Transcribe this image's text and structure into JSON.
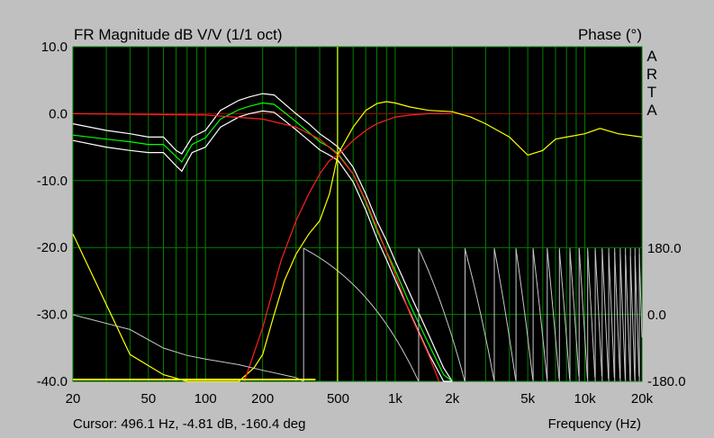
{
  "title": "FR Magnitude dB V/V (1/1 oct)",
  "right_title": "Phase (°)",
  "brand_letters": [
    "A",
    "R",
    "T",
    "A"
  ],
  "cursor_readout": "Cursor: 496.1 Hz, -4.81 dB, -160.4 deg",
  "xlabel": "Frequency (Hz)",
  "colors": {
    "background": "#c0c0c0",
    "plot_bg": "#000000",
    "grid": "#008000",
    "zero_line": "#a00000",
    "cursor": "#ffff00",
    "white_trace": "#ffffff",
    "green_trace": "#00ff00",
    "yellow_trace": "#ffff00",
    "red_trace": "#ff2020",
    "phase_trace": "#c8c8c8"
  },
  "chart_data": {
    "type": "line",
    "x_scale": "log",
    "xlim": [
      20,
      20000
    ],
    "ylim": [
      -40,
      10
    ],
    "phase_lim": [
      -180,
      180
    ],
    "x_ticks": [
      20,
      50,
      100,
      200,
      500,
      1000,
      2000,
      5000,
      10000,
      20000
    ],
    "x_tick_labels": [
      "20",
      "50",
      "100",
      "200",
      "500",
      "1k",
      "2k",
      "5k",
      "10k",
      "20k"
    ],
    "y_ticks": [
      10,
      0,
      -10,
      -20,
      -30,
      -40
    ],
    "y_tick_labels": [
      "10.0",
      "0.0",
      "-10.0",
      "-20.0",
      "-30.0",
      "-40.0"
    ],
    "phase_ticks": [
      180,
      0,
      -180
    ],
    "phase_tick_labels": [
      "180.0",
      "0.0",
      "-180.0"
    ],
    "grid": true,
    "cursor": {
      "x": 496.1,
      "y": -4.81,
      "phase": -160.4
    },
    "series": [
      {
        "color": "white",
        "x": [
          20,
          30,
          40,
          50,
          60,
          70,
          75,
          85,
          100,
          120,
          150,
          170,
          200,
          230,
          260,
          300,
          350,
          400,
          450,
          500,
          600,
          700,
          800,
          900,
          1000,
          1200,
          1500,
          1800,
          2000
        ],
        "y": [
          -1.5,
          -2.5,
          -3.0,
          -3.5,
          -3.5,
          -5.5,
          -6.0,
          -3.5,
          -2.5,
          0.5,
          2.0,
          2.5,
          3.0,
          2.8,
          1.5,
          0.0,
          -1.5,
          -3.0,
          -4.0,
          -5.0,
          -8.0,
          -12.0,
          -16.0,
          -19.0,
          -22.0,
          -27.0,
          -33.0,
          -38.0,
          -40.0
        ]
      },
      {
        "color": "green",
        "x": [
          20,
          30,
          40,
          50,
          60,
          70,
          75,
          85,
          100,
          120,
          150,
          170,
          200,
          230,
          260,
          300,
          350,
          400,
          450,
          500,
          600,
          700,
          800,
          900,
          1000,
          1200,
          1500,
          1800,
          2000
        ],
        "y": [
          -3.2,
          -3.8,
          -4.2,
          -4.6,
          -4.6,
          -6.4,
          -7.2,
          -4.6,
          -3.6,
          -0.8,
          0.6,
          1.1,
          1.6,
          1.4,
          0.2,
          -1.2,
          -2.8,
          -4.2,
          -5.0,
          -6.0,
          -9.0,
          -13.2,
          -17.4,
          -20.6,
          -23.4,
          -28.6,
          -34.4,
          -39.0,
          -40.0
        ]
      },
      {
        "color": "white",
        "x": [
          20,
          30,
          40,
          50,
          60,
          70,
          75,
          85,
          100,
          120,
          150,
          170,
          200,
          230,
          260,
          300,
          350,
          400,
          450,
          500,
          600,
          700,
          800,
          900,
          1000,
          1200,
          1500,
          1800,
          2000
        ],
        "y": [
          -4.0,
          -5.0,
          -5.5,
          -5.8,
          -5.8,
          -7.8,
          -8.6,
          -5.8,
          -5.0,
          -2.0,
          -0.5,
          0.0,
          0.4,
          0.2,
          -1.0,
          -2.4,
          -4.0,
          -5.4,
          -6.2,
          -7.0,
          -10.2,
          -14.4,
          -18.6,
          -21.8,
          -24.8,
          -29.8,
          -35.8,
          -40.0,
          -40.0
        ]
      },
      {
        "color": "yellow",
        "x": [
          20,
          40,
          60,
          80,
          100,
          120,
          150,
          180,
          200,
          230,
          260,
          300,
          350,
          400,
          450,
          500,
          600,
          700,
          800,
          900,
          1000,
          1200,
          1500,
          2000,
          2500,
          3000,
          4000,
          5000,
          6000,
          7000,
          8000,
          10000,
          12000,
          15000,
          20000
        ],
        "y": [
          -18.0,
          -36.0,
          -39.0,
          -40.0,
          -40.0,
          -40.0,
          -40.0,
          -38.0,
          -36.0,
          -30.0,
          -25.0,
          -21.0,
          -18.0,
          -16.0,
          -12.0,
          -6.0,
          -2.0,
          0.5,
          1.5,
          1.8,
          1.6,
          1.0,
          0.5,
          0.3,
          -0.5,
          -1.5,
          -3.5,
          -6.2,
          -5.5,
          -3.8,
          -3.5,
          -3.0,
          -2.2,
          -3.0,
          -3.5
        ]
      },
      {
        "color": "red",
        "x": [
          160,
          200,
          250,
          300,
          350,
          400,
          450,
          500,
          600,
          700,
          800,
          1000,
          1200,
          1500,
          2000
        ],
        "y": [
          -40.0,
          -32.0,
          -22.0,
          -16.0,
          -12.0,
          -9.0,
          -7.0,
          -6.2,
          -4.0,
          -2.5,
          -1.5,
          -0.5,
          -0.2,
          0.0,
          0.0
        ]
      },
      {
        "color": "red",
        "x": [
          20,
          100,
          200,
          300,
          400,
          500,
          600,
          700,
          800,
          1000,
          1200,
          1500,
          1700
        ],
        "y": [
          0.0,
          -0.2,
          -0.8,
          -2.0,
          -3.8,
          -6.2,
          -9.0,
          -13.0,
          -17.0,
          -24.0,
          -30.0,
          -36.0,
          -40.0
        ]
      }
    ],
    "phase_series": {
      "color": "light-gray",
      "label_axis": "right",
      "x": [
        20,
        40,
        60,
        80,
        100,
        150,
        200,
        300
      ],
      "phase": [
        0,
        -40,
        -90,
        -110,
        -120,
        -135,
        -150,
        -170
      ]
    }
  }
}
